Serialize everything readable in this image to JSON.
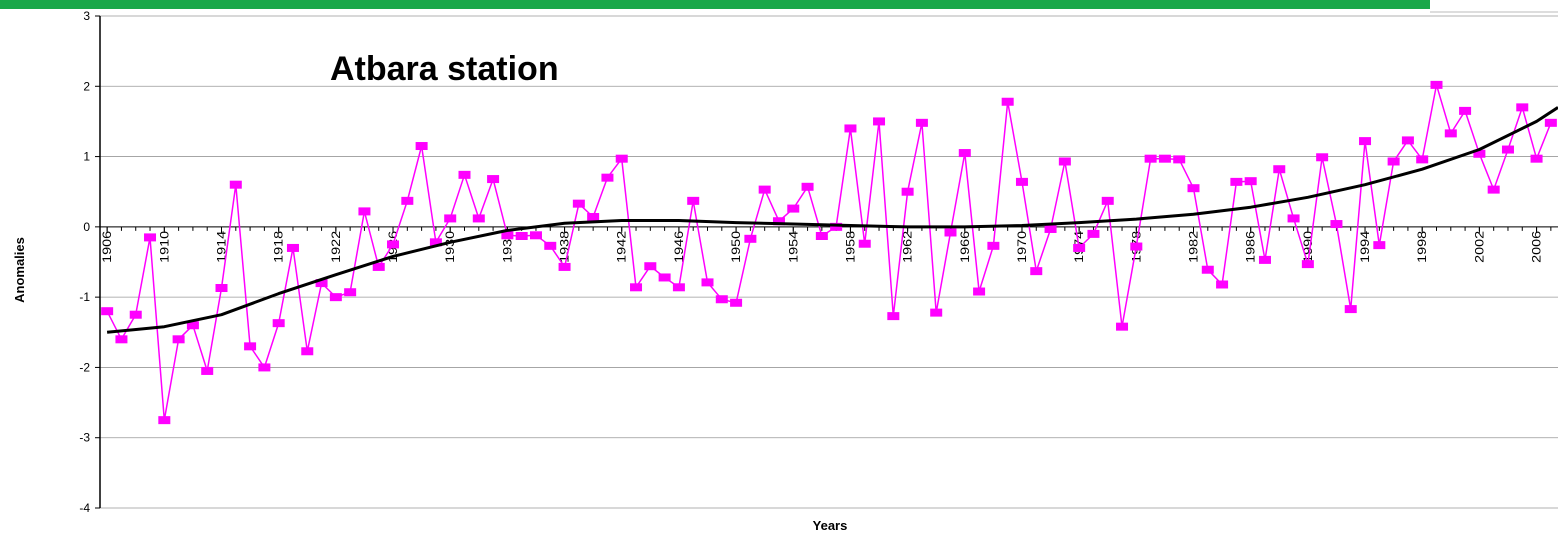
{
  "chart_data": {
    "type": "line",
    "title": "Atbara station",
    "x_label": "Years",
    "y_label": "Anomalies",
    "x": [
      1906,
      1907,
      1908,
      1909,
      1910,
      1911,
      1912,
      1913,
      1914,
      1915,
      1916,
      1917,
      1918,
      1919,
      1920,
      1921,
      1922,
      1923,
      1924,
      1925,
      1926,
      1927,
      1928,
      1929,
      1930,
      1931,
      1932,
      1933,
      1934,
      1935,
      1936,
      1937,
      1938,
      1939,
      1940,
      1941,
      1942,
      1943,
      1944,
      1945,
      1946,
      1947,
      1948,
      1949,
      1950,
      1951,
      1952,
      1953,
      1954,
      1955,
      1956,
      1957,
      1958,
      1959,
      1960,
      1961,
      1962,
      1963,
      1964,
      1965,
      1966,
      1967,
      1968,
      1969,
      1970,
      1971,
      1972,
      1973,
      1974,
      1975,
      1976,
      1977,
      1978,
      1979,
      1980,
      1981,
      1982,
      1983,
      1984,
      1985,
      1986,
      1987,
      1988,
      1989,
      1990,
      1991,
      1992,
      1993,
      1994,
      1995,
      1996,
      1997,
      1998,
      1999,
      2000,
      2001,
      2002,
      2003,
      2004,
      2005,
      2006,
      2007
    ],
    "series": [
      {
        "color": "#ff00ff",
        "marker": "square",
        "values": [
          -1.2,
          -1.6,
          -1.25,
          -0.15,
          -2.75,
          -1.6,
          -1.4,
          -2.05,
          -0.87,
          0.6,
          -1.7,
          -2.0,
          -1.37,
          -0.3,
          -1.77,
          -0.8,
          -1.0,
          -0.93,
          0.22,
          -0.57,
          -0.25,
          0.37,
          1.15,
          -0.22,
          0.12,
          0.74,
          0.12,
          0.68,
          -0.12,
          -0.13,
          -0.12,
          -0.27,
          -0.57,
          0.33,
          0.14,
          0.7,
          0.97,
          -0.86,
          -0.56,
          -0.72,
          -0.86,
          0.37,
          -0.79,
          -1.03,
          -1.08,
          -0.17,
          0.53,
          0.08,
          0.26,
          0.57,
          -0.13,
          0.0,
          1.4,
          -0.24,
          1.5,
          -1.27,
          0.5,
          1.48,
          -1.22,
          -0.08,
          1.05,
          -0.92,
          -0.27,
          1.78,
          0.64,
          -0.63,
          -0.03,
          0.93,
          -0.3,
          -0.1,
          0.37,
          -1.42,
          -0.28,
          0.97,
          0.97,
          0.96,
          0.55,
          -0.61,
          -0.82,
          0.64,
          0.65,
          -0.47,
          0.82,
          0.12,
          -0.53,
          0.99,
          0.04,
          -1.17,
          1.22,
          -0.26,
          0.93,
          1.23,
          0.96,
          2.02,
          1.33,
          1.65,
          1.04,
          0.53,
          1.1,
          1.7,
          0.97,
          1.48
        ]
      },
      {
        "color": "#000000",
        "marker": "none",
        "x": [
          1906,
          1910,
          1914,
          1918,
          1922,
          1926,
          1930,
          1934,
          1938,
          1942,
          1946,
          1950,
          1954,
          1958,
          1962,
          1966,
          1970,
          1974,
          1978,
          1982,
          1986,
          1990,
          1994,
          1998,
          2002,
          2006,
          2007.5
        ],
        "values": [
          -1.5,
          -1.42,
          -1.25,
          -0.95,
          -0.68,
          -0.42,
          -0.22,
          -0.05,
          0.05,
          0.09,
          0.09,
          0.06,
          0.04,
          0.02,
          0.0,
          0.0,
          0.02,
          0.06,
          0.11,
          0.18,
          0.28,
          0.42,
          0.6,
          0.82,
          1.1,
          1.5,
          1.7
        ]
      }
    ],
    "xlim": [
      1905.5,
      2007.5
    ],
    "xticks": [
      1906,
      1910,
      1914,
      1918,
      1922,
      1926,
      1930,
      1934,
      1938,
      1942,
      1946,
      1950,
      1954,
      1958,
      1962,
      1966,
      1970,
      1974,
      1978,
      1982,
      1986,
      1990,
      1994,
      1998,
      2002,
      2006
    ],
    "ylim": [
      -4,
      3
    ],
    "yticks": [
      -4,
      -3,
      -2,
      -1,
      0,
      1,
      2,
      3
    ],
    "grid": true
  }
}
